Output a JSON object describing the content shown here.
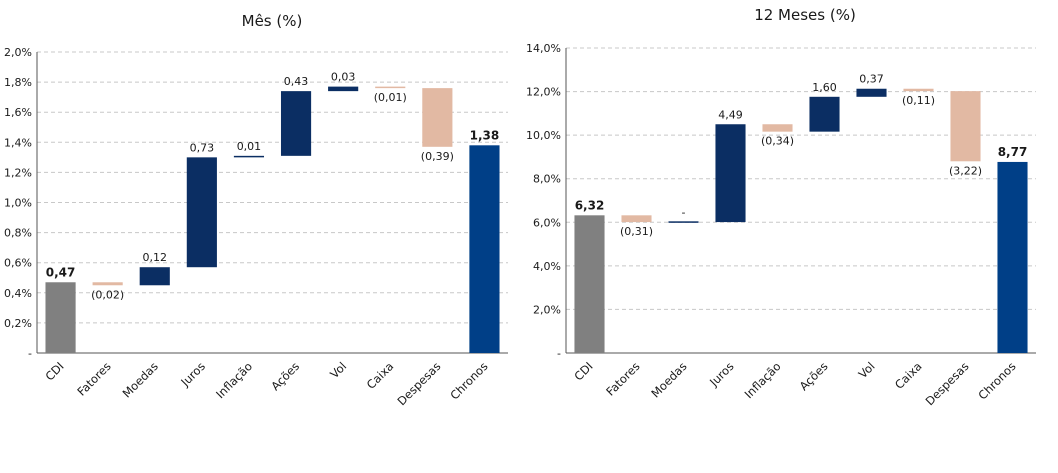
{
  "colors": {
    "base": "#808080",
    "total": "#003f87",
    "positive": "#0b2e63",
    "negative": "#e2b9a3",
    "grid": "#c8c8c8"
  },
  "chart_data": [
    {
      "type": "waterfall",
      "title": "Mês (%)",
      "ylim": [
        0,
        2.0
      ],
      "y_ticks": [
        0,
        0.2,
        0.4,
        0.6,
        0.8,
        1.0,
        1.2,
        1.4,
        1.6,
        1.8,
        2.0
      ],
      "y_tick_labels": [
        "-",
        "0,2%",
        "0,4%",
        "0,6%",
        "0,8%",
        "1,0%",
        "1,2%",
        "1,4%",
        "1,6%",
        "1,8%",
        "2,0%"
      ],
      "grid": true,
      "categories": [
        "CDI",
        "Fatores",
        "Moedas",
        "Juros",
        "Inflação",
        "Ações",
        "Vol",
        "Caixa",
        "Despesas",
        "Chronos"
      ],
      "values": [
        0.47,
        -0.02,
        0.12,
        0.73,
        0.01,
        0.43,
        0.03,
        -0.01,
        -0.39,
        1.38
      ],
      "kinds": [
        "base",
        "delta",
        "delta",
        "delta",
        "delta",
        "delta",
        "delta",
        "delta",
        "delta",
        "total"
      ],
      "labels": [
        "0,47",
        "(0,02)",
        "0,12",
        "0,73",
        "0,01",
        "0,43",
        "0,03",
        "(0,01)",
        "(0,39)",
        "1,38"
      ]
    },
    {
      "type": "waterfall",
      "title": "12 Meses (%)",
      "ylim": [
        0,
        14.0
      ],
      "y_ticks": [
        0,
        2,
        4,
        6,
        8,
        10,
        12,
        14
      ],
      "y_tick_labels": [
        "-",
        "2,0%",
        "4,0%",
        "6,0%",
        "8,0%",
        "10,0%",
        "12,0%",
        "14,0%"
      ],
      "grid": true,
      "categories": [
        "CDI",
        "Fatores",
        "Moedas",
        "Juros",
        "Inflação",
        "Ações",
        "Vol",
        "Caixa",
        "Despesas",
        "Chronos"
      ],
      "values": [
        6.32,
        -0.31,
        0,
        4.49,
        -0.34,
        1.6,
        0.37,
        -0.11,
        -3.22,
        8.77
      ],
      "kinds": [
        "base",
        "delta",
        "delta",
        "delta",
        "delta",
        "delta",
        "delta",
        "delta",
        "delta",
        "total"
      ],
      "labels": [
        "6,32",
        "(0,31)",
        "-",
        "4,49",
        "(0,34)",
        "1,60",
        "0,37",
        "(0,11)",
        "(3,22)",
        "8,77"
      ]
    }
  ]
}
